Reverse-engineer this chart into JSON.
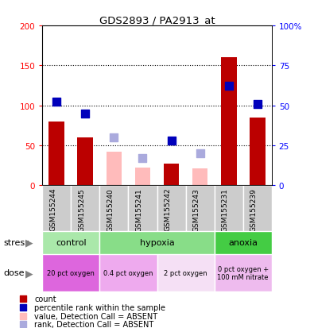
{
  "title": "GDS2893 / PA2913_at",
  "samples": [
    "GSM155244",
    "GSM155245",
    "GSM155240",
    "GSM155241",
    "GSM155242",
    "GSM155243",
    "GSM155231",
    "GSM155239"
  ],
  "count_values": [
    80,
    60,
    null,
    null,
    27,
    null,
    160,
    85
  ],
  "count_absent": [
    null,
    null,
    42,
    22,
    null,
    21,
    null,
    null
  ],
  "rank_values_pct": [
    52,
    45,
    null,
    null,
    28,
    null,
    62,
    51
  ],
  "rank_absent_pct": [
    null,
    null,
    30,
    17,
    null,
    20,
    null,
    null
  ],
  "ylim_left": [
    0,
    200
  ],
  "ylim_right": [
    0,
    100
  ],
  "yticks_left": [
    0,
    50,
    100,
    150,
    200
  ],
  "yticks_right": [
    0,
    25,
    50,
    75,
    100
  ],
  "ytick_labels_left": [
    "0",
    "50",
    "100",
    "150",
    "200"
  ],
  "ytick_labels_right": [
    "0",
    "25",
    "50",
    "75",
    "100%"
  ],
  "stress_groups": [
    {
      "label": "control",
      "start": 0,
      "end": 2,
      "color": "#aae8aa"
    },
    {
      "label": "hypoxia",
      "start": 2,
      "end": 6,
      "color": "#88dd88"
    },
    {
      "label": "anoxia",
      "start": 6,
      "end": 8,
      "color": "#44cc44"
    }
  ],
  "dose_groups": [
    {
      "label": "20 pct oxygen",
      "start": 0,
      "end": 2,
      "color": "#dd66dd"
    },
    {
      "label": "0.4 pct oxygen",
      "start": 2,
      "end": 4,
      "color": "#eeaaee"
    },
    {
      "label": "2 pct oxygen",
      "start": 4,
      "end": 6,
      "color": "#f5e0f5"
    },
    {
      "label": "0 pct oxygen +\n100 mM nitrate",
      "start": 6,
      "end": 8,
      "color": "#eebbee"
    }
  ],
  "bar_color_present": "#bb0000",
  "bar_color_absent": "#ffbbbb",
  "dot_color_present": "#0000bb",
  "dot_color_absent": "#aaaadd",
  "label_area_bg": "#cccccc",
  "legend_items": [
    {
      "color": "#bb0000",
      "label": "count"
    },
    {
      "color": "#0000bb",
      "label": "percentile rank within the sample"
    },
    {
      "color": "#ffbbbb",
      "label": "value, Detection Call = ABSENT"
    },
    {
      "color": "#aaaadd",
      "label": "rank, Detection Call = ABSENT"
    }
  ]
}
